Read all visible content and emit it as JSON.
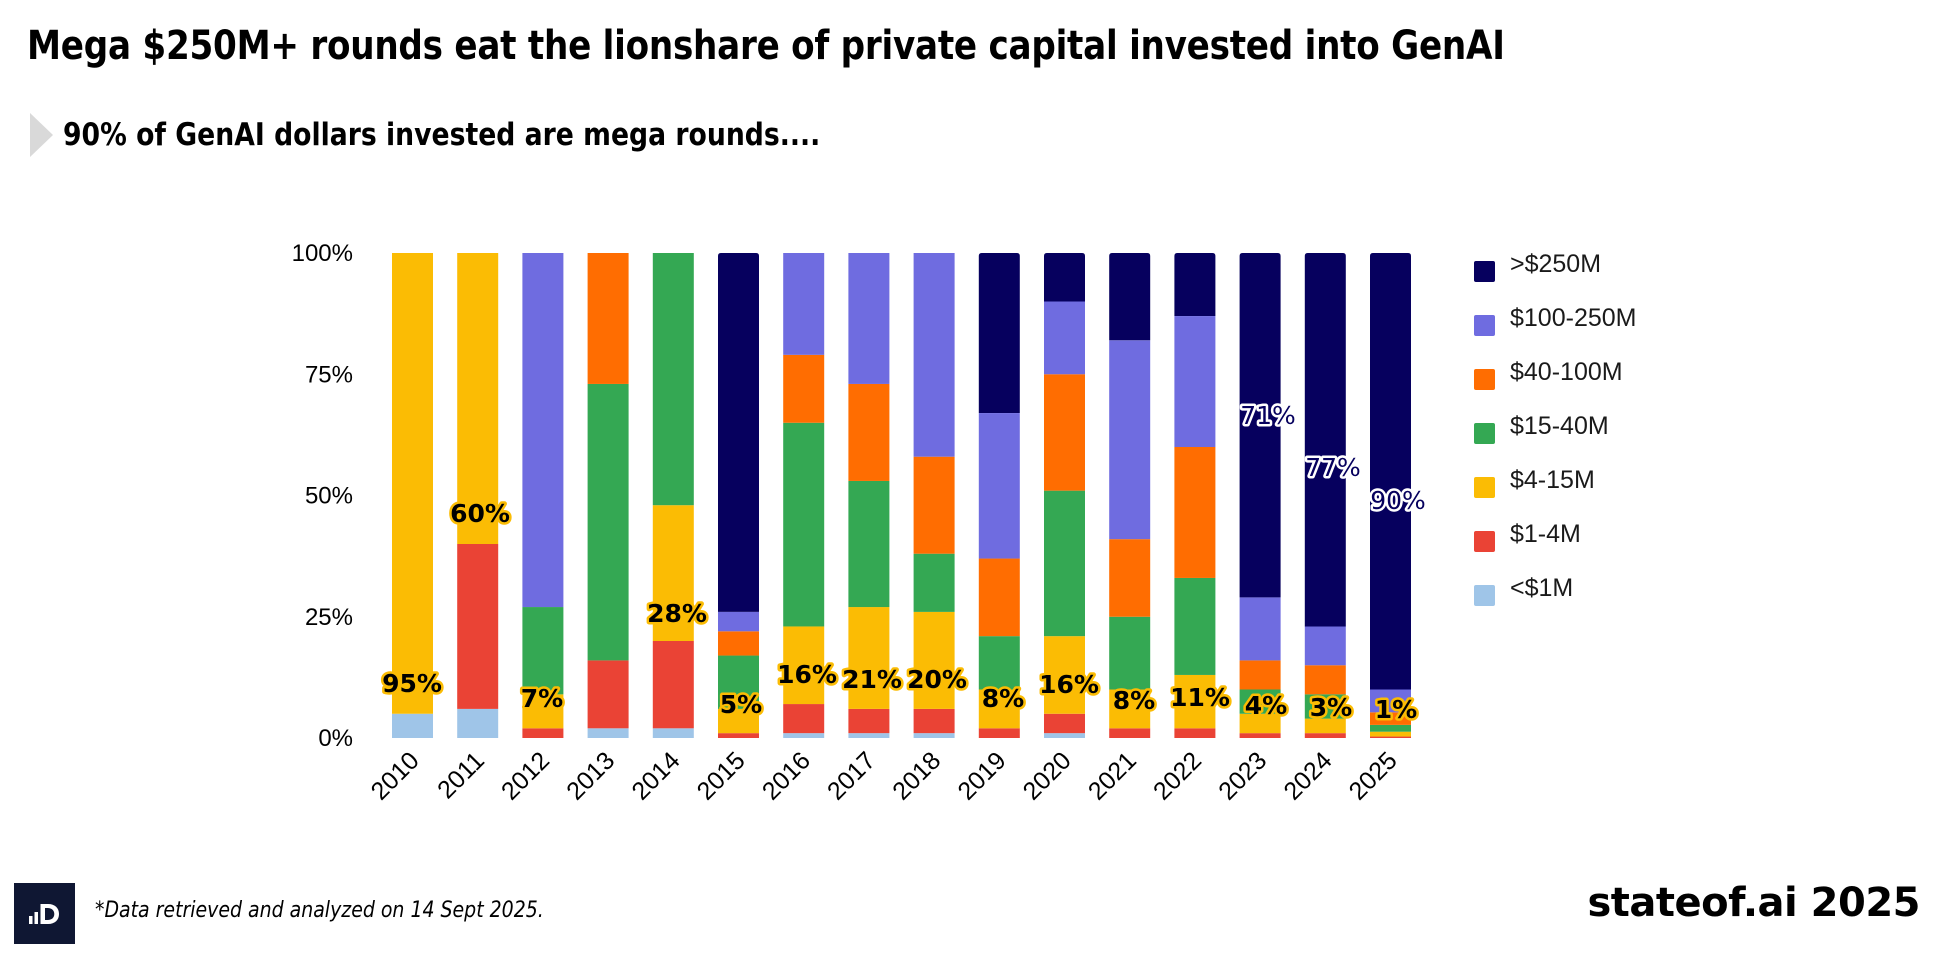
{
  "header": {
    "title": "Mega $250M+ rounds eat the lionshare of private capital invested into GenAI",
    "subtitle": "90% of GenAI dollars invested are mega rounds...."
  },
  "footer": {
    "logo_icon": "bar-chart-d-logo",
    "footnote": "*Data retrieved and analyzed on 14 Sept 2025.",
    "brand": "stateof.ai 2025"
  },
  "chart_data": {
    "type": "bar",
    "stacked": true,
    "normalized": true,
    "title": "",
    "xlabel": "",
    "ylabel": "",
    "ylim": [
      0,
      100
    ],
    "yticks": [
      "0%",
      "25%",
      "50%",
      "75%",
      "100%"
    ],
    "ytick_values": [
      0,
      25,
      50,
      75,
      100
    ],
    "grid": false,
    "legend_position": "right",
    "categories": [
      "2010",
      "2011",
      "2012",
      "2013",
      "2014",
      "2015",
      "2016",
      "2017",
      "2018",
      "2019",
      "2020",
      "2021",
      "2022",
      "2023",
      "2024",
      "2025"
    ],
    "series": [
      {
        "name": "<$1M",
        "color": "#9fc5e8",
        "values": [
          5,
          6,
          0,
          2,
          2,
          0,
          1,
          1,
          1,
          0,
          1,
          0,
          0,
          0,
          0,
          0
        ]
      },
      {
        "name": "$1-4M",
        "color": "#ea4335",
        "values": [
          0,
          34,
          2,
          14,
          18,
          1,
          6,
          5,
          5,
          2,
          4,
          2,
          2,
          1,
          1,
          0.3
        ]
      },
      {
        "name": "$4-15M",
        "color": "#fbbc04",
        "values": [
          95,
          60,
          7,
          0,
          28,
          5,
          16,
          21,
          20,
          8,
          16,
          8,
          11,
          4,
          3,
          1
        ]
      },
      {
        "name": "$15-40M",
        "color": "#34a853",
        "values": [
          0,
          0,
          18,
          57,
          52,
          11,
          42,
          26,
          12,
          11,
          30,
          15,
          20,
          5,
          5,
          1.4
        ]
      },
      {
        "name": "$40-100M",
        "color": "#ff6d01",
        "values": [
          0,
          0,
          0,
          27,
          0,
          5,
          14,
          20,
          20,
          16,
          24,
          16,
          27,
          6,
          6,
          2.6
        ]
      },
      {
        "name": "$100-250M",
        "color": "#6f6ce0",
        "values": [
          0,
          0,
          73,
          0,
          0,
          4,
          21,
          27,
          42,
          30,
          15,
          41,
          27,
          13,
          8,
          4.7
        ]
      },
      {
        "name": ">$250M",
        "color": "#06005e",
        "values": [
          0,
          0,
          0,
          0,
          0,
          74,
          0,
          0,
          0,
          33,
          10,
          18,
          13,
          71,
          77,
          90
        ]
      }
    ],
    "legend": [
      ">$250M",
      "$100-250M",
      "$40-100M",
      "$15-40M",
      "$4-15M",
      "$1-4M",
      "<$1M"
    ],
    "annotations": {
      "mid_round_labels": [
        "95%",
        "60%",
        "7%",
        "28%",
        "5%",
        "16%",
        "21%",
        "20%",
        "8%",
        "16%",
        "8%",
        "11%",
        "4%",
        "3%",
        "1%"
      ],
      "mid_round_label_years": [
        "2010",
        "2011",
        "2012",
        "2014",
        "2015",
        "2016",
        "2017",
        "2018",
        "2019",
        "2020",
        "2021",
        "2022",
        "2023",
        "2024",
        "2025"
      ],
      "mid_round_label_series": "$4-15M",
      "mega_round_labels": [
        "71%",
        "77%",
        "90%"
      ],
      "mega_round_label_years": [
        "2023",
        "2024",
        "2025"
      ],
      "mega_round_label_series": ">$250M"
    }
  }
}
